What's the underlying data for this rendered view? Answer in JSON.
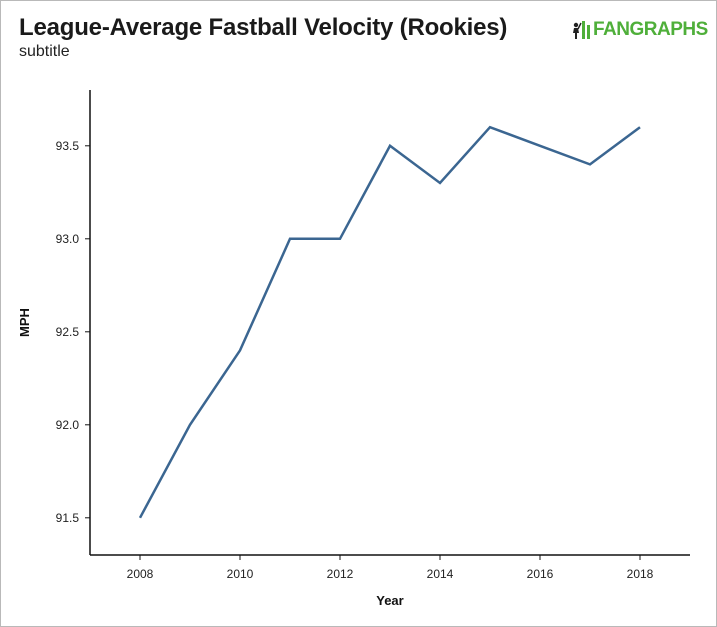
{
  "header": {
    "title": "League-Average Fastball Velocity (Rookies)",
    "subtitle": "subtitle",
    "brand": "FANGRAPHS"
  },
  "colors": {
    "line": "#3b6691",
    "axis": "#111111",
    "brand": "#4faf3a"
  },
  "chart_data": {
    "type": "line",
    "title": "League-Average Fastball Velocity (Rookies)",
    "subtitle": "subtitle",
    "xlabel": "Year",
    "ylabel": "MPH",
    "xlim": [
      2007,
      2019
    ],
    "ylim": [
      91.3,
      93.8
    ],
    "xticks": [
      2008,
      2010,
      2012,
      2014,
      2016,
      2018
    ],
    "yticks": [
      91.5,
      92.0,
      92.5,
      93.0,
      93.5
    ],
    "ytick_labels": [
      "91.5",
      "92.0",
      "92.5",
      "93.0",
      "93.5"
    ],
    "grid": false,
    "legend": "none",
    "series": [
      {
        "x": [
          2008,
          2009,
          2010,
          2011,
          2012,
          2013,
          2014,
          2015,
          2016,
          2017,
          2018
        ],
        "values": [
          91.5,
          92.0,
          92.4,
          93.0,
          93.0,
          93.5,
          93.3,
          93.6,
          93.5,
          93.4,
          93.6
        ]
      }
    ]
  }
}
